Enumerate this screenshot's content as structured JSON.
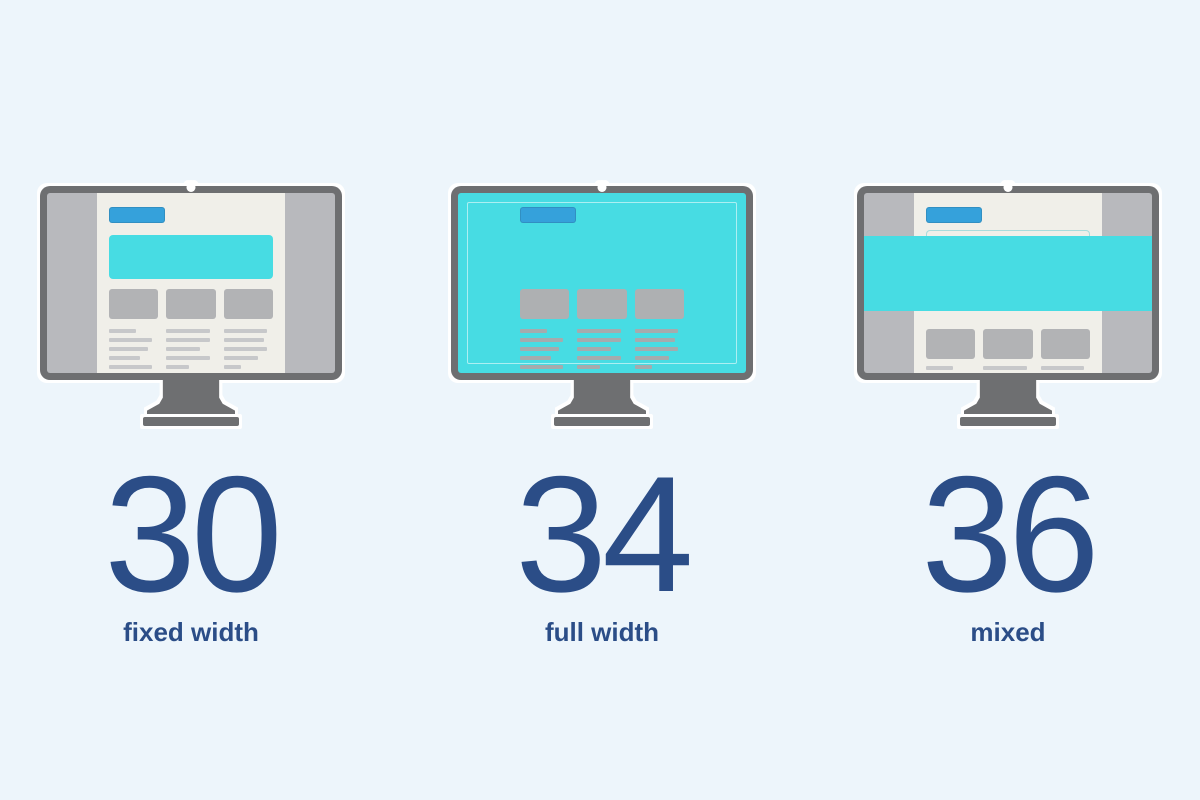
{
  "page": {
    "background_color": "#edf5fb",
    "text_color": "#2b4d87"
  },
  "stats": [
    {
      "value": "30",
      "label": "fixed width"
    },
    {
      "value": "34",
      "label": "full width"
    },
    {
      "value": "36",
      "label": "mixed"
    }
  ],
  "icons": {
    "monitor_fixed": "monitor-fixed-width-layout-icon",
    "monitor_full": "monitor-full-width-layout-icon",
    "monitor_mixed": "monitor-mixed-layout-icon",
    "camera_dot": "webcam-dot-icon"
  },
  "colors": {
    "accent_cyan": "#47dce3",
    "accent_blue": "#35a1db",
    "navy_text": "#2b4d87",
    "monitor_frame_gray": "#6e6f71",
    "screen_side_gray": "#b8b9bd",
    "content_cream": "#f0efe9",
    "placeholder_gray": "#b2b3b5"
  },
  "chart_data": {
    "type": "bar",
    "variant": "pictograph-monitor-icons",
    "categories": [
      "fixed width",
      "full width",
      "mixed"
    ],
    "values": [
      30,
      34,
      36
    ],
    "title": "",
    "xlabel": "",
    "ylabel": "",
    "legend": "none",
    "annotations": "each category shown as a desktop monitor illustration of that layout style with the count printed below"
  }
}
